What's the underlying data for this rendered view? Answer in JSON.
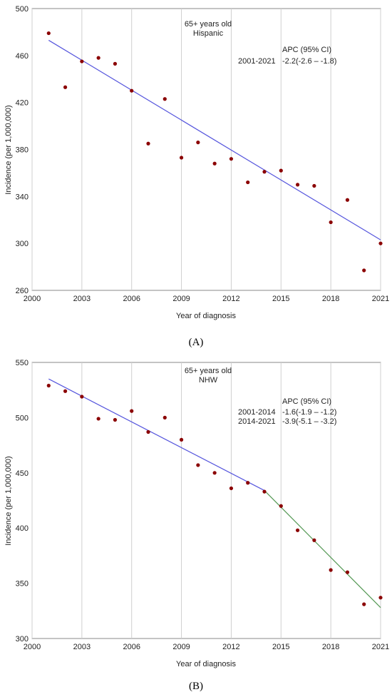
{
  "chart_data": [
    {
      "type": "scatter",
      "panel_label": "(A)",
      "annotation_group": "65+ years old",
      "annotation_ethnicity": "Hispanic",
      "apc_header": "APC (95% CI)",
      "apc_rows": [
        {
          "period": "2001-2021",
          "value": "-2.2(-2.6 – -1.8)"
        }
      ],
      "xlabel": "Year of diagnosis",
      "ylabel": "Incidence (per 1,000,000)",
      "xlim": [
        2000,
        2021
      ],
      "ylim": [
        260,
        500
      ],
      "xticks": [
        2000,
        2003,
        2006,
        2009,
        2012,
        2015,
        2018,
        2021
      ],
      "yticks": [
        260,
        300,
        340,
        380,
        420,
        460,
        500
      ],
      "grid": "vertical",
      "point_color": "#8b0000",
      "x": [
        2001,
        2002,
        2003,
        2004,
        2005,
        2006,
        2007,
        2008,
        2009,
        2010,
        2011,
        2012,
        2013,
        2014,
        2015,
        2016,
        2017,
        2018,
        2019,
        2020,
        2021
      ],
      "y": [
        479,
        433,
        455,
        458,
        453,
        430,
        385,
        423,
        373,
        386,
        368,
        372,
        352,
        361,
        362,
        350,
        349,
        318,
        337,
        277,
        300
      ],
      "fit_segments": [
        {
          "from": 2001,
          "to": 2021,
          "y_start": 473,
          "y_end": 303,
          "color": "#5555dd"
        }
      ]
    },
    {
      "type": "scatter",
      "panel_label": "(B)",
      "annotation_group": "65+ years old",
      "annotation_ethnicity": "NHW",
      "apc_header": "APC (95% CI)",
      "apc_rows": [
        {
          "period": "2001-2014",
          "value": "-1.6(-1.9 – -1.2)"
        },
        {
          "period": "2014-2021",
          "value": "-3.9(-5.1 – -3.2)"
        }
      ],
      "xlabel": "Year of diagnosis",
      "ylabel": "Incidence (per 1,000,000)",
      "xlim": [
        2000,
        2021
      ],
      "ylim": [
        300,
        550
      ],
      "xticks": [
        2000,
        2003,
        2006,
        2009,
        2012,
        2015,
        2018,
        2021
      ],
      "yticks": [
        300,
        350,
        400,
        450,
        500,
        550
      ],
      "grid": "vertical",
      "point_color": "#8b0000",
      "x": [
        2001,
        2002,
        2003,
        2004,
        2005,
        2006,
        2007,
        2008,
        2009,
        2010,
        2011,
        2012,
        2013,
        2014,
        2015,
        2016,
        2017,
        2018,
        2019,
        2020,
        2021
      ],
      "y": [
        529,
        524,
        519,
        499,
        498,
        506,
        487,
        500,
        480,
        457,
        450,
        436,
        441,
        433,
        420,
        398,
        389,
        362,
        360,
        331,
        337
      ],
      "fit_segments": [
        {
          "from": 2001,
          "to": 2014,
          "y_start": 535,
          "y_end": 434,
          "color": "#5555dd"
        },
        {
          "from": 2014,
          "to": 2021,
          "y_start": 434,
          "y_end": 328,
          "color": "#559955"
        }
      ]
    }
  ]
}
